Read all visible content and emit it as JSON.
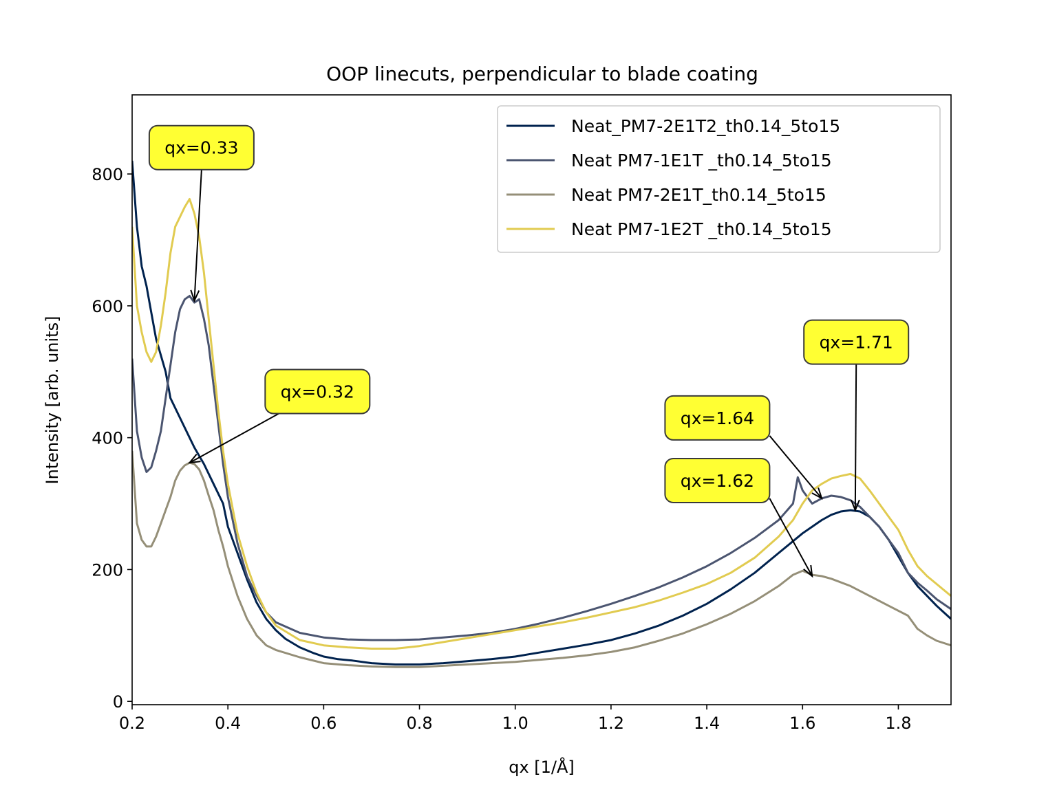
{
  "chart_data": {
    "type": "line",
    "title": "OOP linecuts, perpendicular to blade coating",
    "xlabel": "qx [1/Å]",
    "ylabel": "Intensity [arb. units]",
    "xlim": [
      0.2,
      1.91
    ],
    "ylim": [
      -5,
      920
    ],
    "xticks": [
      0.2,
      0.4,
      0.6,
      0.8,
      1.0,
      1.2,
      1.4,
      1.6,
      1.8
    ],
    "xtick_labels": [
      "0.2",
      "0.4",
      "0.6",
      "0.8",
      "1.0",
      "1.2",
      "1.4",
      "1.6",
      "1.8"
    ],
    "yticks": [
      0,
      200,
      400,
      600,
      800
    ],
    "ytick_labels": [
      "0",
      "200",
      "400",
      "600",
      "800"
    ],
    "grid": false,
    "legend_position": "top-right",
    "series": [
      {
        "name": "Neat_PM7-2E1T2_th0.14_5to15",
        "color": "#00224e",
        "points": [
          [
            0.2,
            820
          ],
          [
            0.21,
            720
          ],
          [
            0.22,
            660
          ],
          [
            0.23,
            630
          ],
          [
            0.24,
            590
          ],
          [
            0.25,
            550
          ],
          [
            0.27,
            500
          ],
          [
            0.28,
            460
          ],
          [
            0.3,
            430
          ],
          [
            0.32,
            400
          ],
          [
            0.33,
            385
          ],
          [
            0.35,
            360
          ],
          [
            0.37,
            330
          ],
          [
            0.39,
            300
          ],
          [
            0.4,
            265
          ],
          [
            0.42,
            225
          ],
          [
            0.44,
            185
          ],
          [
            0.46,
            150
          ],
          [
            0.48,
            125
          ],
          [
            0.5,
            108
          ],
          [
            0.52,
            95
          ],
          [
            0.55,
            82
          ],
          [
            0.58,
            73
          ],
          [
            0.6,
            68
          ],
          [
            0.63,
            64
          ],
          [
            0.66,
            62
          ],
          [
            0.7,
            58
          ],
          [
            0.75,
            56
          ],
          [
            0.8,
            56
          ],
          [
            0.85,
            58
          ],
          [
            0.9,
            61
          ],
          [
            0.95,
            64
          ],
          [
            1.0,
            68
          ],
          [
            1.05,
            74
          ],
          [
            1.1,
            80
          ],
          [
            1.15,
            86
          ],
          [
            1.2,
            93
          ],
          [
            1.25,
            103
          ],
          [
            1.3,
            115
          ],
          [
            1.35,
            130
          ],
          [
            1.4,
            148
          ],
          [
            1.45,
            170
          ],
          [
            1.5,
            195
          ],
          [
            1.55,
            225
          ],
          [
            1.6,
            255
          ],
          [
            1.62,
            265
          ],
          [
            1.64,
            275
          ],
          [
            1.66,
            283
          ],
          [
            1.68,
            288
          ],
          [
            1.7,
            290
          ],
          [
            1.72,
            288
          ],
          [
            1.74,
            280
          ],
          [
            1.76,
            265
          ],
          [
            1.78,
            245
          ],
          [
            1.8,
            220
          ],
          [
            1.82,
            195
          ],
          [
            1.84,
            175
          ],
          [
            1.86,
            160
          ],
          [
            1.88,
            145
          ],
          [
            1.91,
            125
          ]
        ]
      },
      {
        "name": "Neat PM7-1E1T _th0.14_5to15",
        "color": "#4b5570",
        "points": [
          [
            0.2,
            520
          ],
          [
            0.21,
            410
          ],
          [
            0.22,
            370
          ],
          [
            0.23,
            348
          ],
          [
            0.24,
            355
          ],
          [
            0.25,
            380
          ],
          [
            0.26,
            410
          ],
          [
            0.27,
            460
          ],
          [
            0.28,
            510
          ],
          [
            0.29,
            560
          ],
          [
            0.3,
            595
          ],
          [
            0.31,
            610
          ],
          [
            0.32,
            615
          ],
          [
            0.33,
            605
          ],
          [
            0.34,
            610
          ],
          [
            0.35,
            580
          ],
          [
            0.36,
            540
          ],
          [
            0.37,
            480
          ],
          [
            0.38,
            420
          ],
          [
            0.39,
            360
          ],
          [
            0.4,
            310
          ],
          [
            0.42,
            240
          ],
          [
            0.44,
            190
          ],
          [
            0.46,
            160
          ],
          [
            0.48,
            135
          ],
          [
            0.5,
            120
          ],
          [
            0.55,
            104
          ],
          [
            0.6,
            97
          ],
          [
            0.65,
            94
          ],
          [
            0.7,
            93
          ],
          [
            0.75,
            93
          ],
          [
            0.8,
            94
          ],
          [
            0.85,
            97
          ],
          [
            0.9,
            100
          ],
          [
            0.95,
            104
          ],
          [
            1.0,
            110
          ],
          [
            1.05,
            118
          ],
          [
            1.1,
            127
          ],
          [
            1.15,
            137
          ],
          [
            1.2,
            148
          ],
          [
            1.25,
            160
          ],
          [
            1.3,
            173
          ],
          [
            1.35,
            188
          ],
          [
            1.4,
            205
          ],
          [
            1.45,
            225
          ],
          [
            1.5,
            248
          ],
          [
            1.55,
            275
          ],
          [
            1.58,
            300
          ],
          [
            1.59,
            340
          ],
          [
            1.6,
            320
          ],
          [
            1.61,
            310
          ],
          [
            1.62,
            300
          ],
          [
            1.64,
            308
          ],
          [
            1.66,
            312
          ],
          [
            1.68,
            310
          ],
          [
            1.7,
            305
          ],
          [
            1.72,
            295
          ],
          [
            1.74,
            280
          ],
          [
            1.76,
            265
          ],
          [
            1.78,
            245
          ],
          [
            1.8,
            225
          ],
          [
            1.82,
            195
          ],
          [
            1.84,
            180
          ],
          [
            1.86,
            168
          ],
          [
            1.88,
            155
          ],
          [
            1.91,
            140
          ]
        ]
      },
      {
        "name": "Neat PM7-2E1T_th0.14_5to15",
        "color": "#958f78",
        "points": [
          [
            0.2,
            380
          ],
          [
            0.21,
            270
          ],
          [
            0.22,
            245
          ],
          [
            0.23,
            235
          ],
          [
            0.24,
            235
          ],
          [
            0.25,
            250
          ],
          [
            0.26,
            270
          ],
          [
            0.27,
            290
          ],
          [
            0.28,
            310
          ],
          [
            0.29,
            335
          ],
          [
            0.3,
            350
          ],
          [
            0.31,
            358
          ],
          [
            0.32,
            362
          ],
          [
            0.33,
            360
          ],
          [
            0.34,
            352
          ],
          [
            0.35,
            335
          ],
          [
            0.36,
            312
          ],
          [
            0.37,
            290
          ],
          [
            0.38,
            260
          ],
          [
            0.39,
            235
          ],
          [
            0.4,
            205
          ],
          [
            0.42,
            160
          ],
          [
            0.44,
            125
          ],
          [
            0.46,
            100
          ],
          [
            0.48,
            85
          ],
          [
            0.5,
            78
          ],
          [
            0.55,
            67
          ],
          [
            0.6,
            58
          ],
          [
            0.65,
            55
          ],
          [
            0.7,
            53
          ],
          [
            0.75,
            52
          ],
          [
            0.8,
            52
          ],
          [
            0.85,
            54
          ],
          [
            0.9,
            56
          ],
          [
            0.95,
            58
          ],
          [
            1.0,
            60
          ],
          [
            1.05,
            63
          ],
          [
            1.1,
            66
          ],
          [
            1.15,
            70
          ],
          [
            1.2,
            75
          ],
          [
            1.25,
            82
          ],
          [
            1.3,
            92
          ],
          [
            1.35,
            103
          ],
          [
            1.4,
            117
          ],
          [
            1.45,
            133
          ],
          [
            1.5,
            152
          ],
          [
            1.55,
            175
          ],
          [
            1.58,
            192
          ],
          [
            1.6,
            198
          ],
          [
            1.62,
            192
          ],
          [
            1.64,
            190
          ],
          [
            1.66,
            186
          ],
          [
            1.7,
            175
          ],
          [
            1.74,
            160
          ],
          [
            1.78,
            145
          ],
          [
            1.82,
            130
          ],
          [
            1.84,
            110
          ],
          [
            1.86,
            100
          ],
          [
            1.88,
            92
          ],
          [
            1.91,
            85
          ]
        ]
      },
      {
        "name": "Neat PM7-1E2T _th0.14_5to15",
        "color": "#e1cb50",
        "points": [
          [
            0.2,
            720
          ],
          [
            0.21,
            600
          ],
          [
            0.22,
            560
          ],
          [
            0.23,
            530
          ],
          [
            0.24,
            515
          ],
          [
            0.25,
            530
          ],
          [
            0.26,
            570
          ],
          [
            0.27,
            620
          ],
          [
            0.28,
            680
          ],
          [
            0.29,
            720
          ],
          [
            0.3,
            735
          ],
          [
            0.31,
            750
          ],
          [
            0.32,
            762
          ],
          [
            0.33,
            740
          ],
          [
            0.34,
            705
          ],
          [
            0.35,
            650
          ],
          [
            0.36,
            580
          ],
          [
            0.37,
            510
          ],
          [
            0.38,
            440
          ],
          [
            0.39,
            380
          ],
          [
            0.4,
            330
          ],
          [
            0.42,
            255
          ],
          [
            0.44,
            205
          ],
          [
            0.46,
            165
          ],
          [
            0.48,
            135
          ],
          [
            0.5,
            115
          ],
          [
            0.55,
            93
          ],
          [
            0.6,
            85
          ],
          [
            0.65,
            82
          ],
          [
            0.7,
            80
          ],
          [
            0.75,
            80
          ],
          [
            0.8,
            84
          ],
          [
            0.85,
            90
          ],
          [
            0.9,
            96
          ],
          [
            0.95,
            102
          ],
          [
            1.0,
            108
          ],
          [
            1.05,
            114
          ],
          [
            1.1,
            120
          ],
          [
            1.15,
            127
          ],
          [
            1.2,
            135
          ],
          [
            1.25,
            143
          ],
          [
            1.3,
            153
          ],
          [
            1.35,
            165
          ],
          [
            1.4,
            178
          ],
          [
            1.45,
            195
          ],
          [
            1.5,
            218
          ],
          [
            1.55,
            250
          ],
          [
            1.58,
            275
          ],
          [
            1.6,
            300
          ],
          [
            1.62,
            320
          ],
          [
            1.64,
            330
          ],
          [
            1.66,
            338
          ],
          [
            1.68,
            342
          ],
          [
            1.7,
            345
          ],
          [
            1.72,
            338
          ],
          [
            1.74,
            320
          ],
          [
            1.76,
            300
          ],
          [
            1.78,
            280
          ],
          [
            1.8,
            260
          ],
          [
            1.82,
            230
          ],
          [
            1.84,
            205
          ],
          [
            1.86,
            190
          ],
          [
            1.88,
            178
          ],
          [
            1.91,
            160
          ]
        ]
      }
    ],
    "annotations": [
      {
        "text": "qx=0.33",
        "point": [
          0.33,
          608
        ],
        "label_at": [
          0.345,
          840
        ]
      },
      {
        "text": "qx=0.32",
        "point": [
          0.32,
          362
        ],
        "label_at": [
          0.587,
          470
        ]
      },
      {
        "text": "qx=1.62",
        "point": [
          1.62,
          190
        ],
        "label_at": [
          1.422,
          335
        ]
      },
      {
        "text": "qx=1.64",
        "point": [
          1.64,
          308
        ],
        "label_at": [
          1.422,
          430
        ]
      },
      {
        "text": "qx=1.71",
        "point": [
          1.71,
          290
        ],
        "label_at": [
          1.712,
          545
        ]
      }
    ],
    "annotation_style": {
      "box_fill": "#ffff33",
      "box_stroke": "#3a3a3a",
      "arrow_color": "#000000"
    }
  }
}
